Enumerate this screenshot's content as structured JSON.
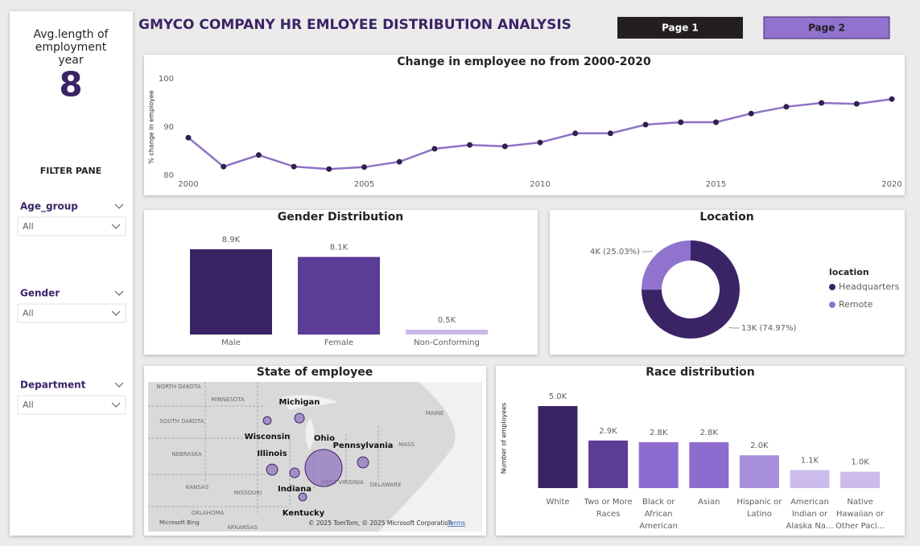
{
  "header": {
    "title": "GMYCO COMPANY HR EMLOYEE DISTRIBUTION ANALYSIS",
    "buttons": [
      "Page 1",
      "Page 2"
    ]
  },
  "kpi": {
    "label": "Avg.length of employment year",
    "value": 8
  },
  "filter_pane": {
    "title": "FILTER PANE",
    "filters": [
      {
        "name": "Age_group",
        "value": "All"
      },
      {
        "name": "Gender",
        "value": "All"
      },
      {
        "name": "Department",
        "value": "All"
      }
    ]
  },
  "chart_data": [
    {
      "type": "line",
      "title": "Change in employee no from 2000-2020",
      "y_label": "% change in employee",
      "x": [
        2000,
        2001,
        2002,
        2003,
        2004,
        2005,
        2006,
        2007,
        2008,
        2009,
        2010,
        2011,
        2012,
        2013,
        2014,
        2015,
        2016,
        2017,
        2018,
        2019,
        2020
      ],
      "series": [
        {
          "name": "% change in employee",
          "color": "#8e72c4",
          "marker_color": "#2f2150",
          "values": [
            87.8,
            81.8,
            84.2,
            81.8,
            81.3,
            81.7,
            82.8,
            85.5,
            86.3,
            86.0,
            86.8,
            88.7,
            88.7,
            90.5,
            91.0,
            91.0,
            92.8,
            94.2,
            95.0,
            94.8,
            95.8
          ]
        }
      ],
      "xlim": [
        2000,
        2020
      ],
      "xticks": [
        2000,
        2005,
        2010,
        2015,
        2020
      ],
      "ylim": [
        79,
        101
      ],
      "yticks": [
        80,
        90,
        100
      ]
    },
    {
      "type": "bar",
      "title": "Gender Distribution",
      "categories": [
        "Male",
        "Female",
        "Non-Conforming"
      ],
      "values": [
        8900,
        8100,
        500
      ],
      "value_labels": [
        "8.9K",
        "8.1K",
        "0.5K"
      ],
      "colors": [
        "#3b2466",
        "#5b3c96",
        "#c9b8e8"
      ]
    },
    {
      "type": "donut",
      "title": "Location",
      "legend_title": "location",
      "categories": [
        "Headquarters",
        "Remote"
      ],
      "values": [
        74.97,
        25.03
      ],
      "value_labels": [
        "13K (74.97%)",
        "4K (25.03%)"
      ],
      "colors": [
        "#3b2466",
        "#9173cf"
      ]
    },
    {
      "type": "bubble_map",
      "title": "State of employee",
      "categories": [
        "Michigan",
        "Wisconsin",
        "Ohio",
        "Pennsylvania",
        "Illinois",
        "Indiana",
        "Kentucky"
      ],
      "values": [
        750,
        500,
        11000,
        1000,
        1000,
        750,
        500
      ],
      "color": "#8c6ebe",
      "basemap_labels": [
        "NORTH DAKOTA",
        "MINNESOTA",
        "SOUTH DAKOTA",
        "NEBRASKA",
        "KANSAS",
        "MISSOURI",
        "OKLAHOMA",
        "ARKANSAS",
        "WEST VIRGINIA",
        "DELAWARE",
        "MASS",
        "MAINE"
      ],
      "attribution": "© 2025 TomTom, © 2025 Microsoft Corporation",
      "terms": "Terms",
      "provider": "Microsoft Bing"
    },
    {
      "type": "bar",
      "title": "Race distribution",
      "y_label": "Number of employees",
      "categories": [
        "White",
        "Two or More Races",
        "Black or African American",
        "Asian",
        "Hispanic or Latino",
        "American Indian or Alaska Na...",
        "Native Hawaiian or Other Paci..."
      ],
      "values": [
        5000,
        2900,
        2800,
        2800,
        2000,
        1100,
        1000
      ],
      "value_labels": [
        "5.0K",
        "2.9K",
        "2.8K",
        "2.8K",
        "2.0K",
        "1.1K",
        "1.0K"
      ],
      "colors": [
        "#3b2466",
        "#5b3c96",
        "#8e6bcf",
        "#8e6bcf",
        "#a78fdc",
        "#cbbcec",
        "#cbbcec"
      ]
    }
  ]
}
